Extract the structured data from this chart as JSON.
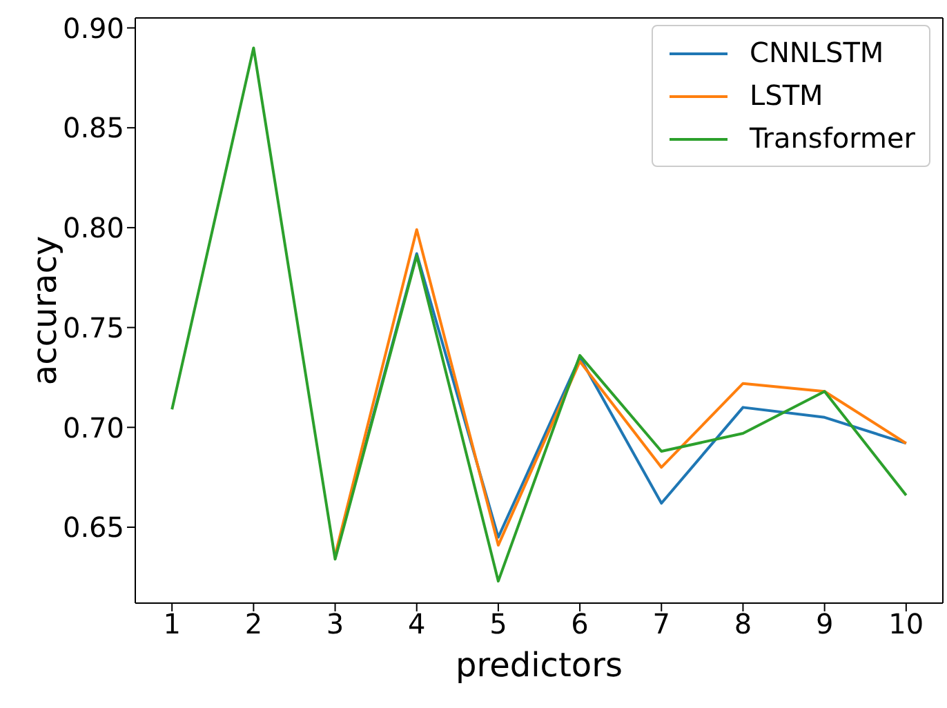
{
  "chart_data": {
    "type": "line",
    "xlabel": "predictors",
    "ylabel": "accuracy",
    "x": [
      1,
      2,
      3,
      4,
      5,
      6,
      7,
      8,
      9,
      10
    ],
    "series": [
      {
        "name": "CNNLSTM",
        "color": "#1f77b4",
        "values": [
          null,
          null,
          0.635,
          0.787,
          0.645,
          0.735,
          0.662,
          0.71,
          0.705,
          0.692
        ]
      },
      {
        "name": "LSTM",
        "color": "#ff7f0e",
        "values": [
          null,
          null,
          0.636,
          0.799,
          0.641,
          0.733,
          0.68,
          0.722,
          0.718,
          0.692
        ]
      },
      {
        "name": "Transformer",
        "color": "#2ca02c",
        "values": [
          0.709,
          0.89,
          0.634,
          0.786,
          0.623,
          0.736,
          0.688,
          0.697,
          0.718,
          0.666
        ]
      }
    ],
    "xlim": [
      0.55,
      10.45
    ],
    "xticks": [
      1,
      2,
      3,
      4,
      5,
      6,
      7,
      8,
      9,
      10
    ],
    "ylim": [
      0.612,
      0.905
    ],
    "yticks": [
      {
        "value": 0.65,
        "label": "0.65"
      },
      {
        "value": 0.7,
        "label": "0.70"
      },
      {
        "value": 0.75,
        "label": "0.75"
      },
      {
        "value": 0.8,
        "label": "0.80"
      },
      {
        "value": 0.85,
        "label": "0.85"
      },
      {
        "value": 0.9,
        "label": "0.90"
      }
    ],
    "grid": false,
    "legend": "top right",
    "marker": "none",
    "line_style": "solid"
  }
}
